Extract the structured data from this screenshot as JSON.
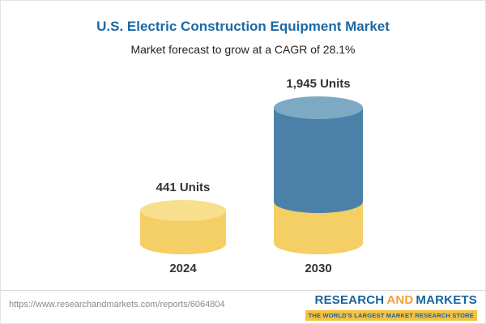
{
  "header": {
    "title": "U.S. Electric Construction Equipment Market",
    "subtitle": "Market forecast to grow at a CAGR of 28.1%"
  },
  "chart_data": {
    "type": "bar",
    "categories": [
      "2024",
      "2030"
    ],
    "values": [
      441,
      1945
    ],
    "value_labels": [
      "441 Units",
      "1,945 Units"
    ],
    "title": "U.S. Electric Construction Equipment Market",
    "subtitle": "Market forecast to grow at a CAGR of 28.1%",
    "unit": "Units",
    "cagr_percent": 28.1,
    "xlabel": "",
    "ylabel": "",
    "ylim": [
      0,
      2100
    ],
    "grid": false,
    "legend": false,
    "bar_style": "3d-cylinder",
    "colors": {
      "bar_2024": "#f3cf66",
      "bar_2030": "#4b81a9",
      "bar_2030_base": "#f3cf66",
      "title": "#1b69a5"
    }
  },
  "footer": {
    "url": "https://www.researchandmarkets.com/reports/6064804",
    "logo": {
      "part1": "RESEARCH",
      "part2": "AND",
      "part3": "MARKETS",
      "tagline": "THE WORLD'S LARGEST MARKET RESEARCH STORE"
    }
  }
}
